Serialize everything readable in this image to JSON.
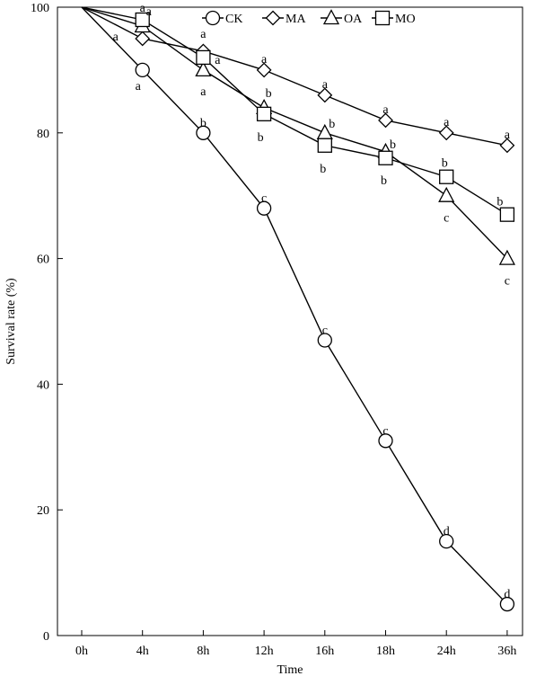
{
  "chart_data": {
    "type": "line",
    "xlabel": "Time",
    "ylabel": "Survival rate (%)",
    "categories": [
      "0h",
      "4h",
      "8h",
      "12h",
      "16h",
      "18h",
      "24h",
      "36h"
    ],
    "ylim": [
      0,
      100
    ],
    "yticks": [
      0,
      20,
      40,
      60,
      80,
      100
    ],
    "grid": false,
    "legend_position": "top-center",
    "series": [
      {
        "name": "CK",
        "marker": "circle",
        "values": [
          100,
          90,
          80,
          68,
          47,
          31,
          15,
          5
        ],
        "labels": [
          "",
          "a",
          "b",
          "c",
          "c",
          "c",
          "d",
          "d"
        ]
      },
      {
        "name": "MA",
        "marker": "diamond",
        "values": [
          100,
          95,
          93,
          90,
          86,
          82,
          80,
          78
        ],
        "labels": [
          "",
          "a",
          "a",
          "a",
          "a",
          "a",
          "a",
          "a"
        ]
      },
      {
        "name": "OA",
        "marker": "triangle",
        "values": [
          100,
          97,
          90,
          84,
          80,
          77,
          70,
          60
        ],
        "labels": [
          "",
          "a",
          "a",
          "b",
          "b",
          "b",
          "c",
          "c"
        ]
      },
      {
        "name": "MO",
        "marker": "square",
        "values": [
          100,
          98,
          92,
          83,
          78,
          76,
          73,
          67
        ],
        "labels": [
          "",
          "a",
          "a",
          "b",
          "b",
          "b",
          "b",
          "b"
        ]
      }
    ]
  }
}
